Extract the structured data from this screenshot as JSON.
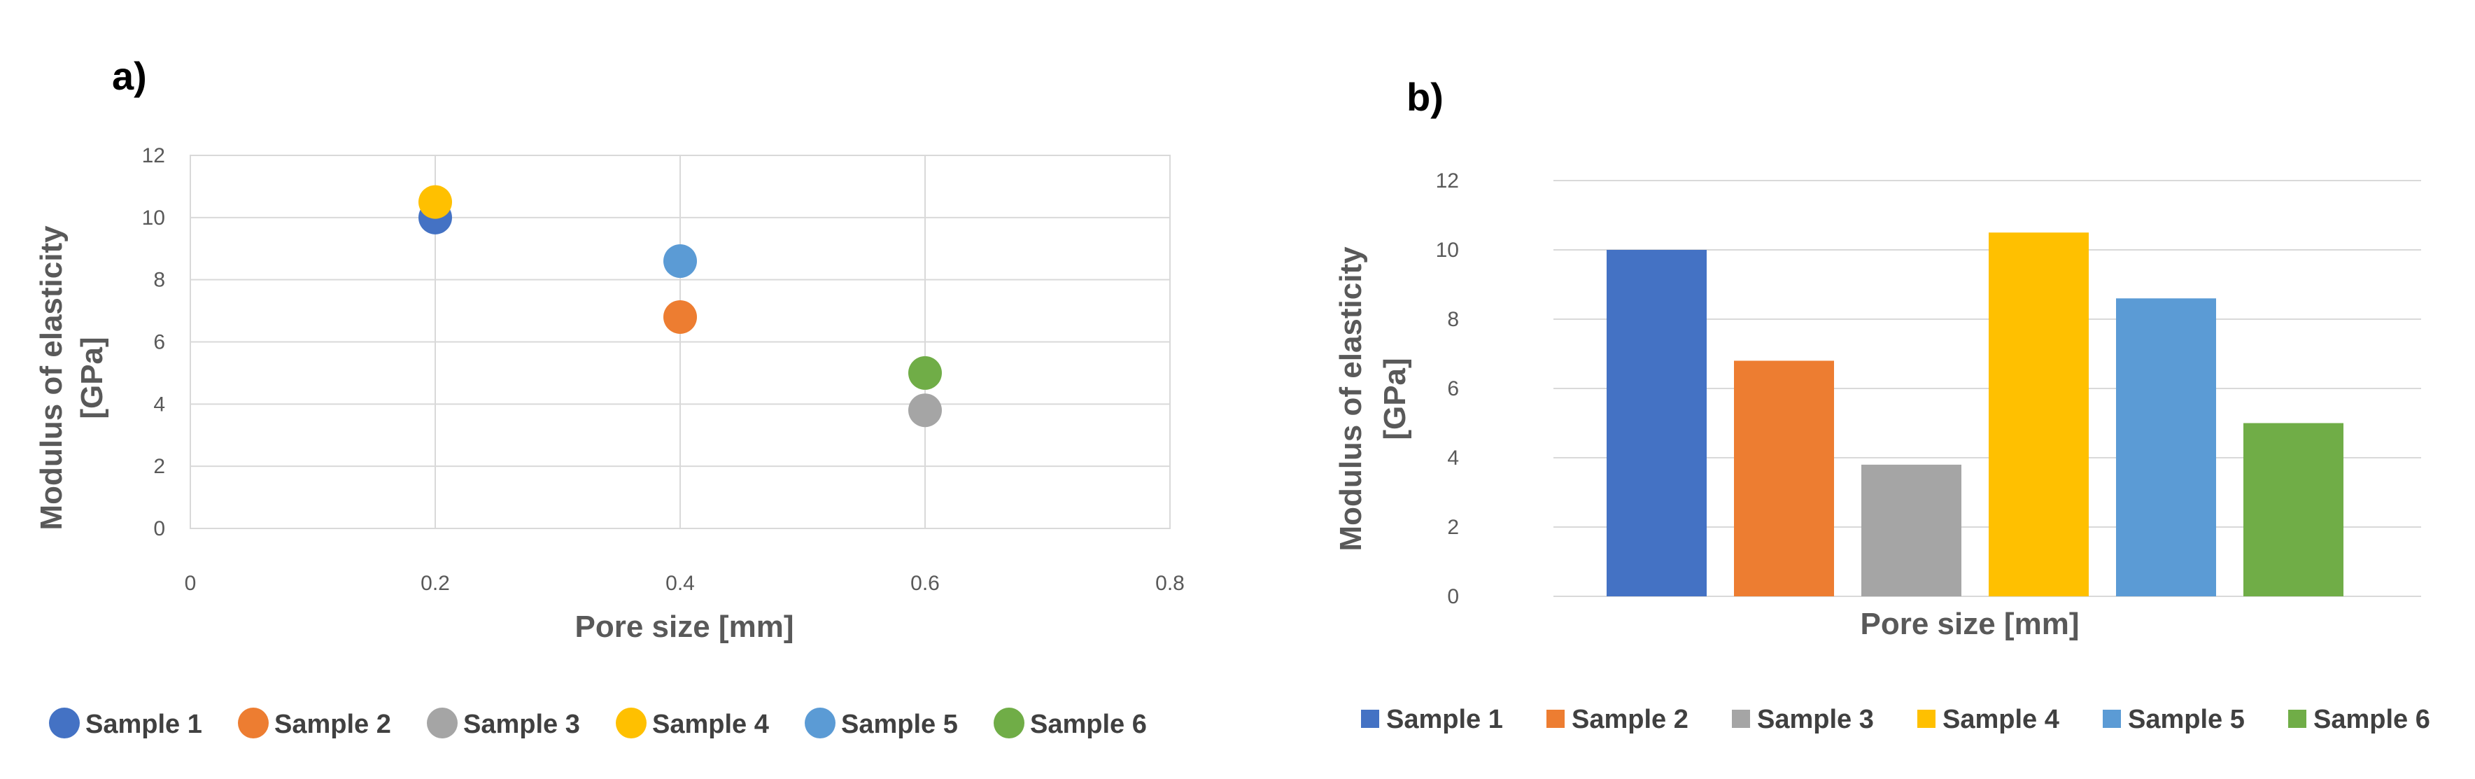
{
  "chart_data": [
    {
      "type": "scatter",
      "panel_label": "a)",
      "title": "",
      "xlabel": "Pore size  [mm]",
      "ylabel_line1": "Modulus of elasticity",
      "ylabel_line2": "[GPa]",
      "xlim": [
        0,
        0.8
      ],
      "ylim": [
        0,
        12
      ],
      "xticks": [
        "0",
        "0.2",
        "0.4",
        "0.6",
        "0.8"
      ],
      "yticks": [
        "0",
        "2",
        "4",
        "6",
        "8",
        "10",
        "12"
      ],
      "grid": true,
      "legend_position": "bottom",
      "series": [
        {
          "name": "Sample 1",
          "color": "#4472c4",
          "x": 0.2,
          "y": 10.0
        },
        {
          "name": "Sample 2",
          "color": "#ed7d31",
          "x": 0.4,
          "y": 6.8
        },
        {
          "name": "Sample 3",
          "color": "#a5a5a5",
          "x": 0.6,
          "y": 3.8
        },
        {
          "name": "Sample 4",
          "color": "#ffc000",
          "x": 0.2,
          "y": 10.5
        },
        {
          "name": "Sample 5",
          "color": "#5b9bd5",
          "x": 0.4,
          "y": 8.6
        },
        {
          "name": "Sample 6",
          "color": "#70ad47",
          "x": 0.6,
          "y": 5.0
        }
      ]
    },
    {
      "type": "bar",
      "panel_label": "b)",
      "title": "",
      "xlabel": "Pore size  [mm]",
      "ylabel_line1": "Modulus of elasticity",
      "ylabel_line2": "[GPa]",
      "ylim": [
        0,
        12
      ],
      "yticks": [
        "0",
        "2",
        "4",
        "6",
        "8",
        "10",
        "12"
      ],
      "grid": true,
      "legend_position": "bottom",
      "series": [
        {
          "name": "Sample 1",
          "color": "#4472c4",
          "value": 10.0
        },
        {
          "name": "Sample 2",
          "color": "#ed7d31",
          "value": 6.8
        },
        {
          "name": "Sample 3",
          "color": "#a5a5a5",
          "value": 3.8
        },
        {
          "name": "Sample 4",
          "color": "#ffc000",
          "value": 10.5
        },
        {
          "name": "Sample 5",
          "color": "#5b9bd5",
          "value": 8.6
        },
        {
          "name": "Sample 6",
          "color": "#70ad47",
          "value": 5.0
        }
      ]
    }
  ]
}
